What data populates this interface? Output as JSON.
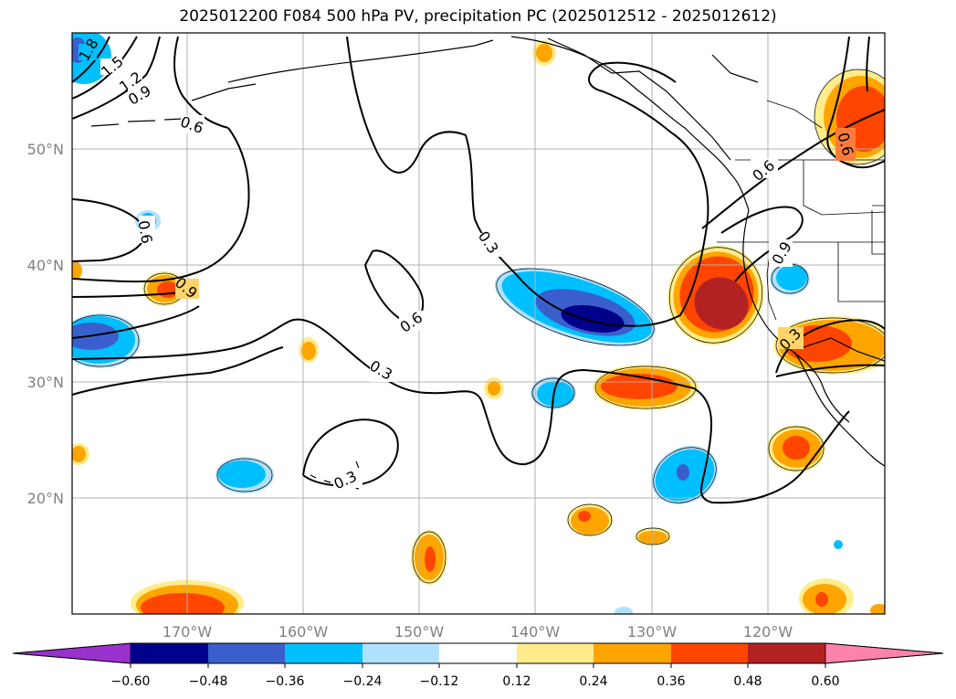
{
  "title": "2025012200 F084 500 hPa PV, precipitation PC (2025012512 - 2025012612)",
  "map": {
    "lon_labels": [
      "170°W",
      "160°W",
      "150°W",
      "140°W",
      "130°W",
      "120°W"
    ],
    "lat_labels": [
      "50°N",
      "40°N",
      "30°N",
      "20°N"
    ],
    "contour_labels": [
      "1.8",
      "1.5",
      "1.2",
      "0.9",
      "0.6",
      "0.6",
      "0.9",
      "0.3",
      "0.6",
      "0.3",
      "0.3",
      "0.6",
      "0.9",
      "0.3",
      "0.6"
    ]
  },
  "colorbar": {
    "ticks": [
      "−0.60",
      "−0.48",
      "−0.36",
      "−0.24",
      "−0.12",
      "0.12",
      "0.24",
      "0.36",
      "0.48",
      "0.60"
    ],
    "colors": [
      "#9932cc",
      "#00008b",
      "#3a5fcd",
      "#00bfff",
      "#b0e2ff",
      "#ffffff",
      "#ffec8b",
      "#ffa500",
      "#ff4500",
      "#b22222",
      "#ff82ab"
    ]
  }
}
